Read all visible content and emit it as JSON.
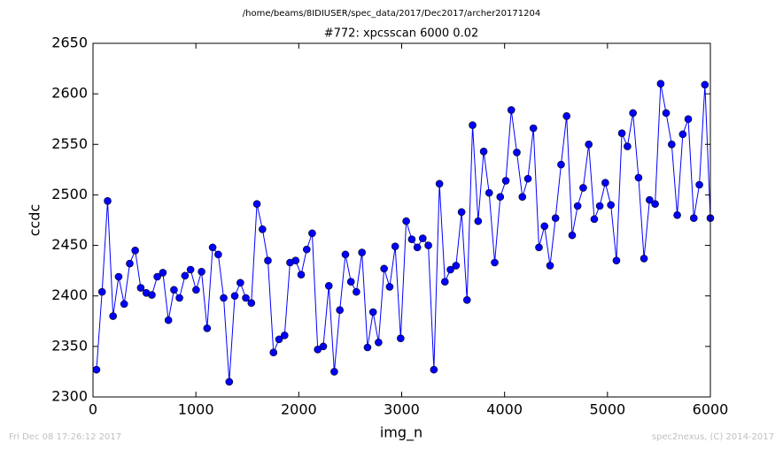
{
  "chart_data": {
    "type": "line",
    "suptitle": "/home/beams/8IDIUSER/spec_data/2017/Dec2017/archer20171204",
    "title": "#772: xpcsscan 6000 0.02",
    "xlabel": "img_n",
    "ylabel": "ccdc",
    "footer_left": "Fri Dec 08 17:26:12 2017",
    "footer_right": "spec2nexus, (C) 2014-2017",
    "color": "#0000ff",
    "marker": "o",
    "x": [
      34,
      88,
      142,
      195,
      249,
      303,
      357,
      410,
      464,
      518,
      572,
      625,
      679,
      733,
      787,
      840,
      894,
      948,
      1002,
      1055,
      1109,
      1163,
      1217,
      1270,
      1324,
      1378,
      1432,
      1485,
      1539,
      1593,
      1647,
      1700,
      1754,
      1808,
      1862,
      1915,
      1969,
      2023,
      2077,
      2130,
      2184,
      2238,
      2292,
      2345,
      2399,
      2453,
      2507,
      2560,
      2614,
      2668,
      2722,
      2775,
      2829,
      2883,
      2937,
      2990,
      3044,
      3098,
      3152,
      3205,
      3259,
      3313,
      3367,
      3420,
      3474,
      3528,
      3582,
      3635,
      3689,
      3743,
      3797,
      3850,
      3904,
      3958,
      4012,
      4065,
      4119,
      4173,
      4227,
      4280,
      4334,
      4388,
      4442,
      4495,
      4549,
      4603,
      4657,
      4710,
      4764,
      4818,
      4872,
      4925,
      4979,
      5033,
      5087,
      5140,
      5194,
      5248,
      5302,
      5355,
      5409,
      5463,
      5517,
      5570,
      5624,
      5678,
      5732,
      5785,
      5839,
      5893,
      5947,
      6000
    ],
    "values": [
      2327,
      2404,
      2494,
      2380,
      2419,
      2392,
      2432,
      2445,
      2408,
      2403,
      2401,
      2419,
      2423,
      2376,
      2406,
      2398,
      2420,
      2426,
      2406,
      2424,
      2368,
      2448,
      2441,
      2398,
      2315,
      2400,
      2413,
      2398,
      2393,
      2491,
      2466,
      2435,
      2344,
      2357,
      2361,
      2433,
      2435,
      2421,
      2446,
      2462,
      2347,
      2350,
      2410,
      2325,
      2386,
      2441,
      2414,
      2404,
      2443,
      2349,
      2384,
      2354,
      2427,
      2409,
      2449,
      2358,
      2474,
      2456,
      2448,
      2457,
      2450,
      2327,
      2511,
      2414,
      2426,
      2430,
      2483,
      2396,
      2569,
      2474,
      2543,
      2502,
      2433,
      2498,
      2514,
      2584,
      2542,
      2498,
      2516,
      2566,
      2448,
      2469,
      2430,
      2477,
      2530,
      2578,
      2460,
      2489,
      2507,
      2550,
      2476,
      2489,
      2512,
      2490,
      2435,
      2561,
      2548,
      2581,
      2517,
      2437,
      2495,
      2491,
      2610,
      2581,
      2550,
      2480,
      2560,
      2575,
      2477,
      2510,
      2609,
      2477
    ],
    "xlim": [
      0,
      6000
    ],
    "xticks": [
      0,
      1000,
      2000,
      3000,
      4000,
      5000,
      6000
    ],
    "ylim": [
      2300,
      2650
    ],
    "yticks": [
      2300,
      2350,
      2400,
      2450,
      2500,
      2550,
      2600,
      2650
    ],
    "grid": false
  }
}
